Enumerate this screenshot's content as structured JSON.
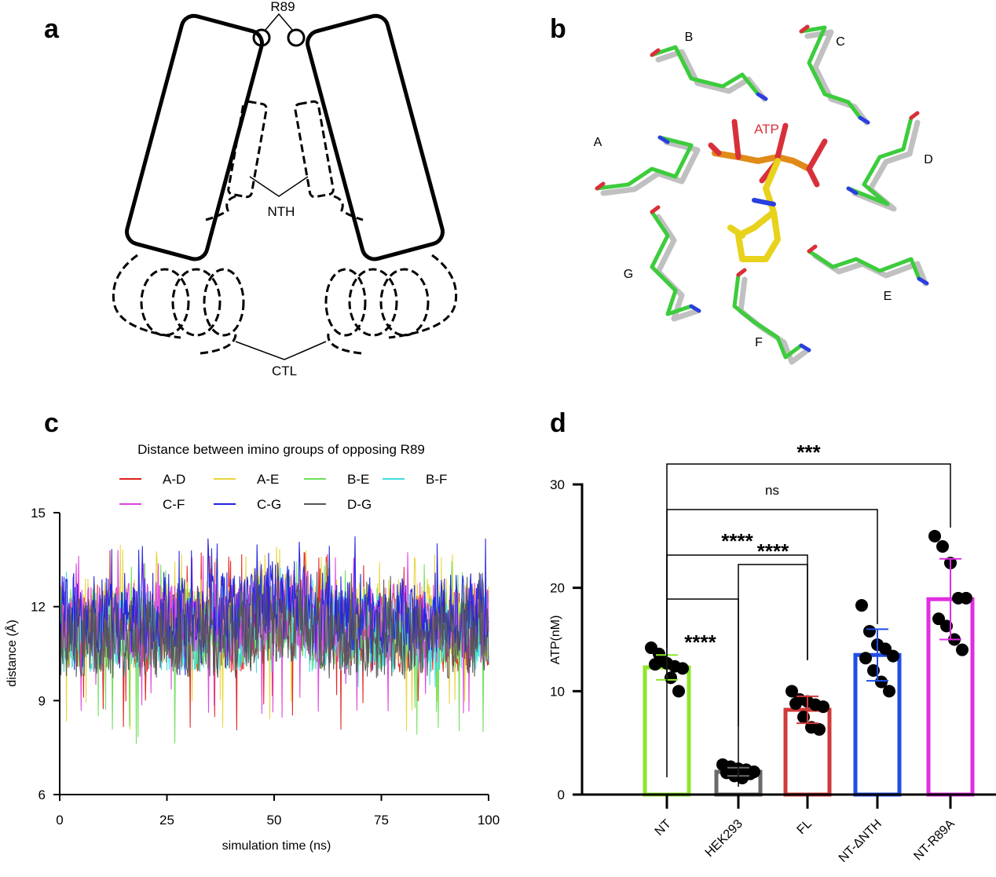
{
  "panels": {
    "a": {
      "label": "a",
      "annotations": {
        "r89": "R89",
        "nth": "NTH",
        "ctl": "CTL"
      }
    },
    "b": {
      "label": "b",
      "ligand": "ATP",
      "residue_labels": [
        "A",
        "B",
        "C",
        "D",
        "E",
        "F",
        "G"
      ],
      "colors": {
        "ligand_carbon": "#e8d21c",
        "phosphate": "#e08a18",
        "oxygen": "#d8303a",
        "nitrogen": "#2a3fe0",
        "residue_carbon_1": "#3ccc3c",
        "residue_carbon_2": "#c0c0c0"
      }
    },
    "c": {
      "label": "c"
    },
    "d": {
      "label": "d"
    }
  },
  "chart_data": [
    {
      "panel": "c",
      "type": "line",
      "title": "Distance between imino groups of opposing R89",
      "xlabel": "simulation time (ns)",
      "ylabel": "distance (Å)",
      "xlim": [
        0,
        100
      ],
      "ylim": [
        6,
        15
      ],
      "xticks": [
        "0",
        "25",
        "50",
        "75",
        "100"
      ],
      "yticks": [
        "6",
        "9",
        "12",
        "15"
      ],
      "grid": false,
      "legend": "top",
      "series": [
        {
          "name": "A-D",
          "color": "#e0201c",
          "mean": 11.2,
          "min": 8.0,
          "max": 13.8
        },
        {
          "name": "A-E",
          "color": "#e8d43a",
          "mean": 11.6,
          "min": 8.0,
          "max": 14.0
        },
        {
          "name": "B-E",
          "color": "#6ee05a",
          "mean": 11.3,
          "min": 7.6,
          "max": 13.6
        },
        {
          "name": "B-F",
          "color": "#40dede",
          "mean": 11.2,
          "min": 9.3,
          "max": 13.4
        },
        {
          "name": "C-F",
          "color": "#e040e0",
          "mean": 11.5,
          "min": 8.4,
          "max": 13.9
        },
        {
          "name": "C-G",
          "color": "#2020e0",
          "mean": 11.8,
          "min": 9.6,
          "max": 14.3
        },
        {
          "name": "D-G",
          "color": "#555555",
          "mean": 11.0,
          "min": 9.4,
          "max": 13.2
        }
      ]
    },
    {
      "panel": "d",
      "type": "bar",
      "ylabel": "ATP(nM)",
      "ylim": [
        0,
        30
      ],
      "yticks": [
        "0",
        "10",
        "20",
        "30"
      ],
      "categories": [
        "NT",
        "HEK293",
        "FL",
        "NT-ΔNTH",
        "NT-R89A"
      ],
      "values": [
        12.3,
        2.2,
        8.2,
        13.5,
        18.9
      ],
      "error_sd": [
        1.2,
        0.4,
        1.3,
        2.5,
        3.9
      ],
      "colors": [
        "#8ee62a",
        "#6a6a6a",
        "#d03a3a",
        "#1f4ee8",
        "#e02ee0"
      ],
      "points": [
        [
          14.2,
          13.6,
          12.7,
          12.4,
          12.2,
          12.6,
          12.9,
          11.3,
          10.0
        ],
        [
          2.9,
          2.7,
          2.5,
          2.4,
          2.2,
          2.1,
          1.8,
          1.6,
          2.0
        ],
        [
          10.0,
          9.2,
          9.0,
          8.7,
          8.5,
          8.8,
          7.5,
          6.5,
          6.3
        ],
        [
          18.3,
          15.8,
          14.5,
          14.1,
          13.4,
          13.2,
          12.0,
          10.9,
          10.0
        ],
        [
          25.0,
          24.0,
          22.4,
          19.0,
          19.0,
          17.0,
          16.3,
          15.0,
          14.0
        ]
      ],
      "comparisons": [
        {
          "from": "NT",
          "to": "HEK293",
          "label": "****"
        },
        {
          "from": "HEK293",
          "to": "FL",
          "label": "****"
        },
        {
          "from": "NT",
          "to": "FL",
          "label": "****"
        },
        {
          "from": "NT",
          "to": "NT-ΔNTH",
          "label": "ns"
        },
        {
          "from": "NT",
          "to": "NT-R89A",
          "label": "***"
        }
      ]
    }
  ]
}
